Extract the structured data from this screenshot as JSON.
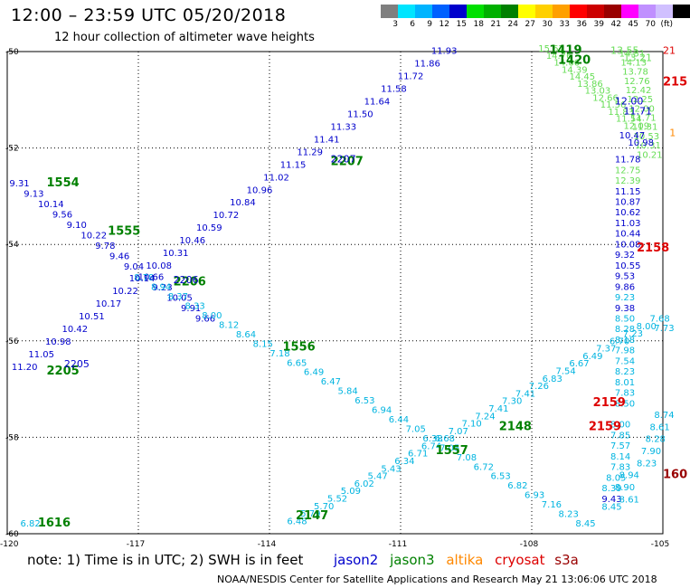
{
  "title": "12:00 – 23:59 UTC 05/20/2018",
  "subtitle": "12 hour collection of altimeter wave heights",
  "colorbar": {
    "colors": [
      "#7f7f7f",
      "#00e5ff",
      "#00b4ff",
      "#0060ff",
      "#0000cc",
      "#00e000",
      "#00b000",
      "#008000",
      "#ffff00",
      "#ffd000",
      "#ffa000",
      "#ff0000",
      "#cc0000",
      "#990000",
      "#ff00ff",
      "#c090ff",
      "#d0c0ff",
      "#000000"
    ],
    "labels": [
      "3",
      "6",
      "9",
      "12",
      "15",
      "18",
      "21",
      "24",
      "27",
      "30",
      "33",
      "36",
      "39",
      "42",
      "45",
      "70",
      "(ft)"
    ]
  },
  "map": {
    "x_range": [
      -120,
      -105
    ],
    "y_range": [
      -60,
      -50
    ],
    "x_ticks": [
      "-120",
      "-117",
      "-114",
      "-111",
      "-108",
      "-105"
    ],
    "y_ticks": [
      "-50",
      "-52",
      "-54",
      "-56",
      "-58",
      "-60"
    ],
    "colors": {
      "dark_blue": "#0000cc",
      "cyan": "#00b4e0",
      "green": "#008000",
      "light_green": "#66dd55",
      "red": "#dd0000",
      "dark_red": "#990000",
      "orange": "#ff8800"
    }
  },
  "tracks": [
    {
      "id": "t1",
      "color": "dark_blue",
      "labels": [
        "9.31",
        "9.13",
        "10.14",
        "9.56",
        "9.10",
        "10.22",
        "9.78",
        "9.46",
        "9.04",
        "10.66",
        "9.23",
        "10.05",
        "9.91",
        "9.66"
      ],
      "start": [
        -119.95,
        -52.8
      ],
      "end": [
        -115.7,
        -55.6
      ]
    },
    {
      "id": "t2",
      "color": "cyan",
      "labels": [
        "8.78",
        "8.94",
        "8.37",
        "8.33",
        "8.00",
        "8.12",
        "8.64",
        "8.15",
        "7.18",
        "6.65",
        "6.49",
        "6.47",
        "5.84",
        "6.53",
        "6.94",
        "6.44",
        "7.05",
        "6.38",
        "7.05",
        "7.08",
        "6.72",
        "6.53",
        "6.82",
        "6.93",
        "7.16",
        "8.23",
        "8.45"
      ],
      "start": [
        -117.1,
        -54.75
      ],
      "end": [
        -107.0,
        -59.85
      ]
    },
    {
      "id": "t3",
      "color": "dark_blue",
      "labels": [
        "11.20",
        "11.05",
        "10.98",
        "10.42",
        "10.51",
        "10.17",
        "10.22",
        "10.14",
        "10.08",
        "10.31",
        "10.46",
        "10.59",
        "10.72",
        "10.84",
        "10.96",
        "11.02",
        "11.15",
        "11.29",
        "11.41",
        "11.33",
        "11.50",
        "11.64",
        "11.58",
        "11.72",
        "11.86",
        "11.93"
      ],
      "start": [
        -119.9,
        -56.6
      ],
      "end": [
        -110.3,
        -50.05
      ]
    },
    {
      "id": "t4",
      "color": "cyan",
      "labels": [
        "6.48",
        "5.79",
        "5.70",
        "5.52",
        "5.09",
        "6.02",
        "5.47",
        "5.43",
        "6.34",
        "6.71",
        "6.74",
        "6.68",
        "7.07",
        "7.10",
        "7.24",
        "7.41",
        "7.30",
        "7.41",
        "7.26",
        "6.83",
        "7.54",
        "6.67",
        "6.49",
        "7.37",
        "6.70",
        "7.23",
        "8.00",
        "7.68"
      ],
      "start": [
        -113.6,
        -59.8
      ],
      "end": [
        -105.3,
        -55.6
      ]
    },
    {
      "id": "t5",
      "color": "light_green",
      "labels": [
        "15.67",
        "14.76",
        "14.66",
        "14.39",
        "14.45",
        "13.86",
        "13.03",
        "12.66",
        "11.56",
        "11.83",
        "11.54",
        "12.09"
      ],
      "start": [
        -107.85,
        -50.0
      ],
      "end": [
        -105.9,
        -51.6
      ]
    },
    {
      "id": "t6",
      "color": "light_green",
      "labels": [
        "14.51",
        "14.13",
        "13.78",
        "12.76",
        "12.42",
        "12.25",
        "12.00",
        "11.71",
        "11.31",
        "10.53",
        "10.31",
        "10.21"
      ],
      "start": [
        -106.0,
        -50.1
      ],
      "end": [
        -105.6,
        -52.2
      ]
    }
  ],
  "column_labels": [
    {
      "text": "10.47",
      "x": -106.0,
      "y": -51.8
    },
    {
      "text": "10.98",
      "x": -105.8,
      "y": -51.95
    },
    {
      "text": "11.78",
      "x": -106.1,
      "y": -52.3
    },
    {
      "text": "12.75",
      "x": -106.1,
      "y": -52.52
    },
    {
      "text": "12.39",
      "x": -106.1,
      "y": -52.74
    },
    {
      "text": "11.15",
      "x": -106.1,
      "y": -52.96
    },
    {
      "text": "10.87",
      "x": -106.1,
      "y": -53.18
    },
    {
      "text": "10.62",
      "x": -106.1,
      "y": -53.4
    },
    {
      "text": "11.03",
      "x": -106.1,
      "y": -53.62
    },
    {
      "text": "10.44",
      "x": -106.1,
      "y": -53.84
    },
    {
      "text": "10.08",
      "x": -106.1,
      "y": -54.06
    },
    {
      "text": "9.32",
      "x": -106.1,
      "y": -54.28
    },
    {
      "text": "10.55",
      "x": -106.1,
      "y": -54.5
    },
    {
      "text": "9.53",
      "x": -106.1,
      "y": -54.72
    },
    {
      "text": "9.86",
      "x": -106.1,
      "y": -54.94
    },
    {
      "text": "9.23",
      "x": -106.1,
      "y": -55.16
    },
    {
      "text": "9.38",
      "x": -106.1,
      "y": -55.38
    },
    {
      "text": "8.50",
      "x": -106.1,
      "y": -55.6
    },
    {
      "text": "8.28",
      "x": -106.1,
      "y": -55.82
    },
    {
      "text": "8.18",
      "x": -106.1,
      "y": -56.04
    },
    {
      "text": "7.98",
      "x": -106.1,
      "y": -56.26
    },
    {
      "text": "7.54",
      "x": -106.1,
      "y": -56.48
    },
    {
      "text": "8.23",
      "x": -106.1,
      "y": -56.7
    },
    {
      "text": "8.01",
      "x": -106.1,
      "y": -56.92
    },
    {
      "text": "7.83",
      "x": -106.1,
      "y": -57.14
    },
    {
      "text": "8.50",
      "x": -106.1,
      "y": -57.36
    },
    {
      "text": "8.00",
      "x": -106.2,
      "y": -57.8
    },
    {
      "text": "7.85",
      "x": -106.2,
      "y": -58.02
    },
    {
      "text": "7.57",
      "x": -106.2,
      "y": -58.24
    },
    {
      "text": "8.14",
      "x": -106.2,
      "y": -58.46
    },
    {
      "text": "7.83",
      "x": -106.2,
      "y": -58.68
    },
    {
      "text": "8.05",
      "x": -106.3,
      "y": -58.9
    },
    {
      "text": "8.39",
      "x": -106.4,
      "y": -59.12
    },
    {
      "text": "9.43",
      "x": -106.4,
      "y": -59.34
    },
    {
      "text": "8.45",
      "x": -106.4,
      "y": -59.5
    },
    {
      "text": "8.61",
      "x": -106.0,
      "y": -59.35
    },
    {
      "text": "8.90",
      "x": -106.1,
      "y": -59.1
    },
    {
      "text": "8.94",
      "x": -106.0,
      "y": -58.85
    },
    {
      "text": "8.23",
      "x": -105.6,
      "y": -58.6
    },
    {
      "text": "7.90",
      "x": -105.5,
      "y": -58.35
    },
    {
      "text": "8.28",
      "x": -105.4,
      "y": -58.1
    },
    {
      "text": "8.61",
      "x": -105.3,
      "y": -57.85
    },
    {
      "text": "8.74",
      "x": -105.2,
      "y": -57.6
    },
    {
      "text": "7.73",
      "x": -105.2,
      "y": -55.8
    },
    {
      "text": "6.82",
      "x": -119.7,
      "y": -59.85
    }
  ],
  "passes": [
    {
      "text": "1554",
      "x": -119.1,
      "y": -52.8,
      "color": "green"
    },
    {
      "text": "1555",
      "x": -117.7,
      "y": -53.8,
      "color": "green"
    },
    {
      "text": "1556",
      "x": -113.7,
      "y": -56.2,
      "color": "green"
    },
    {
      "text": "1557",
      "x": -110.2,
      "y": -58.35,
      "color": "green"
    },
    {
      "text": "1616",
      "x": -119.3,
      "y": -59.85,
      "color": "green"
    },
    {
      "text": "2147",
      "x": -113.4,
      "y": -59.7,
      "color": "green"
    },
    {
      "text": "2148",
      "x": -108.75,
      "y": -57.85,
      "color": "green"
    },
    {
      "text": "2205",
      "x": -119.1,
      "y": -56.7,
      "color": "green"
    },
    {
      "text": "2205",
      "x": -118.7,
      "y": -56.55,
      "color": "dark_blue"
    },
    {
      "text": "2206",
      "x": -116.2,
      "y": -54.85,
      "color": "green"
    },
    {
      "text": "2206",
      "x": -116.2,
      "y": -54.8,
      "color": "dark_blue"
    },
    {
      "text": "2207",
      "x": -112.6,
      "y": -52.35,
      "color": "green"
    },
    {
      "text": "2207",
      "x": -112.6,
      "y": -52.3,
      "color": "dark_blue"
    },
    {
      "text": "1419",
      "x": -107.6,
      "y": -50.05,
      "color": "green"
    },
    {
      "text": "1420",
      "x": -107.4,
      "y": -50.25,
      "color": "green"
    },
    {
      "text": "2158",
      "x": -105.6,
      "y": -54.15,
      "color": "red"
    },
    {
      "text": "2159",
      "x": -106.6,
      "y": -57.35,
      "color": "red"
    },
    {
      "text": "2159",
      "x": -106.7,
      "y": -57.85,
      "color": "red"
    },
    {
      "text": "21",
      "x": -105.0,
      "y": -50.05,
      "color": "red"
    },
    {
      "text": "215",
      "x": -105.0,
      "y": -50.7,
      "color": "red"
    },
    {
      "text": "160",
      "x": -105.0,
      "y": -58.85,
      "color": "dark_red"
    },
    {
      "text": "1",
      "x": -104.85,
      "y": -51.75,
      "color": "orange"
    },
    {
      "text": "13.55",
      "x": -106.2,
      "y": -50.05,
      "color": "light_green"
    },
    {
      "text": "13.21",
      "x": -105.9,
      "y": -50.2,
      "color": "light_green"
    },
    {
      "text": "12.00",
      "x": -106.1,
      "y": -51.1,
      "color": "dark_blue"
    },
    {
      "text": "11.71",
      "x": -105.9,
      "y": -51.3,
      "color": "dark_blue"
    }
  ],
  "notes": {
    "prefix": "note:  1) Time is in UTC;  2) SWH is in feet",
    "sat1": "jason2",
    "sat2": "jason3",
    "sat3": "altika",
    "sat4": "cryosat",
    "sat5": "s3a"
  },
  "footer": "NOAA/NESDIS Center for Satellite Applications and Research      May 21 13:06:06 UTC 2018"
}
